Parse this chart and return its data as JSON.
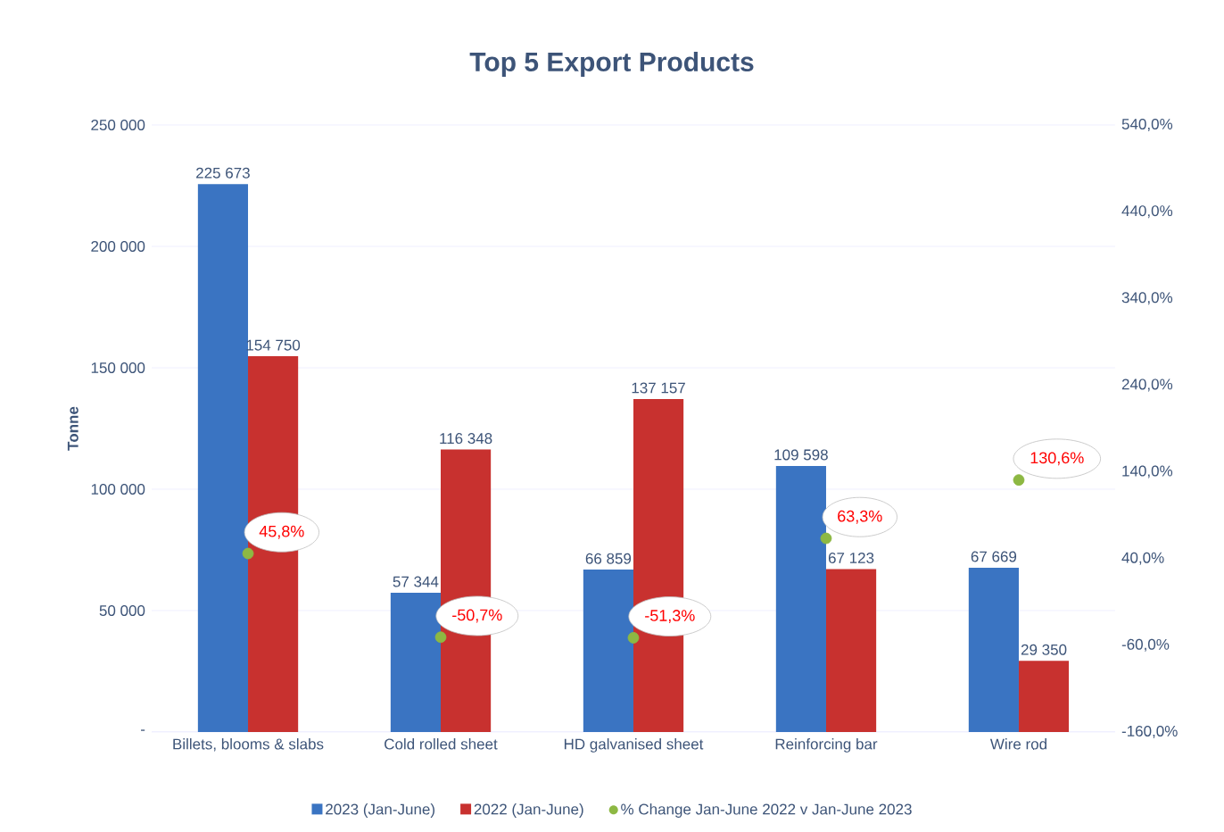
{
  "chart_data": {
    "type": "bar",
    "title": "Top 5 Export Products",
    "ylabel": "Tonne",
    "categories": [
      "Billets, blooms & slabs",
      "Cold rolled sheet",
      "HD galvanised sheet",
      "Reinforcing bar",
      "Wire rod"
    ],
    "series": [
      {
        "name": "2023 (Jan-June)",
        "color": "#3a74c2",
        "values": [
          225673,
          57344,
          66859,
          109598,
          67669
        ],
        "value_labels": [
          "225 673",
          "57 344",
          "66 859",
          "109 598",
          "67 669"
        ]
      },
      {
        "name": "2022 (Jan-June)",
        "color": "#c8312f",
        "values": [
          154750,
          116348,
          137157,
          67123,
          29350
        ],
        "value_labels": [
          "154 750",
          "116 348",
          "137 157",
          "67 123",
          "29 350"
        ]
      },
      {
        "name": "% Change Jan-June 2022 v Jan-June 2023",
        "type": "scatter",
        "axis": "y2",
        "color": "#8db843",
        "values": [
          45.8,
          -50.7,
          -51.3,
          63.3,
          130.6
        ],
        "value_labels": [
          "45,8%",
          "-50,7%",
          "-51,3%",
          "63,3%",
          "130,6%"
        ]
      }
    ],
    "ylim": [
      0,
      250000
    ],
    "yticks": [
      {
        "value": 0,
        "label": "-"
      },
      {
        "value": 50000,
        "label": "50 000"
      },
      {
        "value": 100000,
        "label": "100 000"
      },
      {
        "value": 150000,
        "label": "150 000"
      },
      {
        "value": 200000,
        "label": "200 000"
      },
      {
        "value": 250000,
        "label": "250 000"
      }
    ],
    "y2lim": [
      -160,
      540
    ],
    "y2ticks": [
      {
        "value": -160,
        "label": "-160,0%"
      },
      {
        "value": -60,
        "label": "-60,0%"
      },
      {
        "value": 40,
        "label": "40,0%"
      },
      {
        "value": 140,
        "label": "140,0%"
      },
      {
        "value": 240,
        "label": "240,0%"
      },
      {
        "value": 340,
        "label": "340,0%"
      },
      {
        "value": 440,
        "label": "440,0%"
      },
      {
        "value": 540,
        "label": "540,0%"
      }
    ],
    "grid": "y",
    "legend": "bottom",
    "marker": "circle"
  }
}
